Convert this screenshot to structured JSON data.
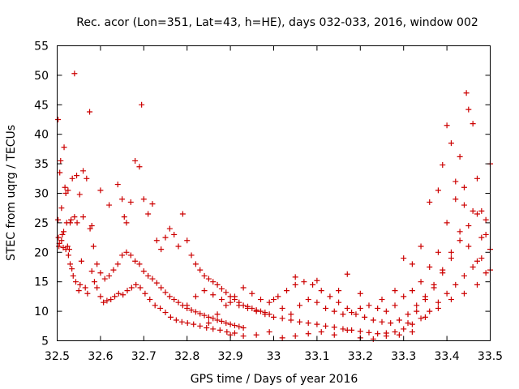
{
  "chart_data": {
    "type": "scatter",
    "title": "Rec. acor (Lon=351, Lat=43, h=HE), days 032-033, 2016, window 002",
    "xlabel": "GPS time / Days of year 2016",
    "ylabel": "STEC from uqrg / TECUs",
    "xlim": [
      32.5,
      33.5
    ],
    "ylim": [
      5,
      55
    ],
    "xticks": [
      "32.5",
      "32.6",
      "32.7",
      "32.8",
      "32.9",
      "33",
      "33.1",
      "33.2",
      "33.3",
      "33.4",
      "33.5"
    ],
    "yticks": [
      "5",
      "10",
      "15",
      "20",
      "25",
      "30",
      "35",
      "40",
      "45",
      "50",
      "55"
    ],
    "grid": false,
    "legend": "none",
    "marker": "plus",
    "color": "#cc0000",
    "series": [
      {
        "x": [
          32.502,
          32.502,
          32.503,
          32.504,
          32.506,
          32.508,
          32.51,
          32.512,
          32.514,
          32.516,
          32.518,
          32.52,
          32.522,
          32.524,
          32.526,
          32.528,
          32.53,
          32.532,
          32.534,
          32.537,
          32.54,
          32.543,
          32.546,
          32.55,
          32.553,
          32.556,
          32.56,
          32.565,
          32.57,
          32.575,
          32.58,
          32.586,
          32.592,
          32.6,
          32.607,
          32.615,
          32.624,
          32.633,
          32.642,
          32.652,
          32.662,
          32.672,
          32.682,
          32.692,
          32.703,
          32.714,
          32.726,
          32.738,
          32.75,
          32.762,
          32.775,
          32.788,
          32.801,
          32.815,
          32.83,
          32.845,
          32.86,
          32.876,
          32.892,
          32.91
        ],
        "y": [
          42.5,
          25.5,
          22.5,
          21.0,
          33.5,
          35.5,
          27.5,
          23.0,
          20.8,
          37.8,
          31.0,
          30.0,
          25.0,
          21.0,
          19.5,
          20.5,
          18.0,
          25.5,
          17.2,
          16.0,
          26.0,
          15.0,
          25.0,
          13.5,
          14.5,
          18.5,
          33.8,
          14.0,
          13.0,
          43.8,
          16.8,
          15.0,
          14.0,
          12.5,
          11.5,
          11.8,
          12.0,
          12.5,
          13.0,
          12.8,
          13.5,
          14.0,
          14.5,
          14.0,
          13.0,
          12.0,
          11.0,
          10.5,
          9.8,
          9.0,
          8.5,
          8.2,
          8.0,
          7.8,
          7.5,
          7.2,
          7.0,
          6.8,
          6.5,
          6.3
        ]
      },
      {
        "x": [
          32.505,
          32.51,
          32.515,
          32.52,
          32.525,
          32.53,
          32.535,
          32.545,
          32.552,
          32.56,
          32.568,
          32.576,
          32.584,
          32.592,
          32.6,
          32.61,
          32.62,
          32.63,
          32.64,
          32.65,
          32.66,
          32.67,
          32.68,
          32.69,
          32.7,
          32.71,
          32.72,
          32.73,
          32.74,
          32.75,
          32.76,
          32.77,
          32.78,
          32.79,
          32.8,
          32.81,
          32.82,
          32.83,
          32.84,
          32.85,
          32.86,
          32.87,
          32.88,
          32.89,
          32.9,
          32.91,
          32.92,
          32.93
        ],
        "y": [
          21.5,
          22.0,
          23.5,
          20.5,
          30.5,
          25.0,
          32.5,
          33.0,
          29.8,
          26.0,
          32.5,
          24.0,
          21.0,
          18.0,
          16.5,
          15.5,
          16.0,
          17.0,
          18.0,
          19.5,
          20.0,
          19.5,
          18.5,
          18.0,
          16.8,
          16.0,
          15.5,
          14.8,
          14.0,
          13.2,
          12.5,
          12.0,
          11.5,
          11.0,
          10.5,
          10.2,
          9.9,
          9.6,
          9.3,
          9.0,
          8.8,
          8.5,
          8.3,
          8.0,
          7.8,
          7.6,
          7.4,
          7.2
        ]
      },
      {
        "x": [
          32.54,
          32.58,
          32.6,
          32.62,
          32.64,
          32.65,
          32.655,
          32.66,
          32.67,
          32.68,
          32.69,
          32.695,
          32.7,
          32.71,
          32.72,
          32.73,
          32.74,
          32.75,
          32.76,
          32.77,
          32.78,
          32.79,
          32.8,
          32.81,
          32.82,
          32.83,
          32.84,
          32.85,
          32.86,
          32.87,
          32.88,
          32.89,
          32.9,
          32.91,
          32.92,
          32.93,
          32.94,
          32.95,
          32.96,
          32.97,
          32.98,
          32.99
        ],
        "y": [
          50.3,
          24.5,
          30.5,
          28.0,
          31.5,
          29.0,
          26.0,
          25.0,
          28.5,
          35.5,
          34.5,
          45.0,
          29.0,
          26.5,
          28.2,
          22.0,
          20.5,
          22.5,
          24.0,
          23.0,
          21.0,
          26.5,
          22.0,
          19.5,
          18.0,
          17.0,
          16.0,
          15.5,
          15.0,
          14.5,
          13.8,
          13.2,
          12.5,
          12.0,
          11.5,
          11.0,
          10.8,
          10.5,
          10.2,
          10.0,
          9.8,
          9.5
        ]
      },
      {
        "x": [
          32.8,
          32.82,
          32.84,
          32.86,
          32.88,
          32.9,
          32.92,
          32.94,
          32.96,
          32.98,
          33.0,
          33.02,
          33.04,
          33.06,
          33.08,
          33.1,
          33.12,
          33.14,
          33.16,
          33.18,
          33.2,
          33.22,
          33.24,
          33.26,
          33.28,
          33.3,
          33.32,
          33.34,
          33.36,
          33.38,
          33.4,
          33.42,
          33.44,
          33.46,
          33.48,
          33.5
        ],
        "y": [
          11.0,
          12.5,
          13.5,
          12.8,
          12.0,
          11.5,
          11.0,
          10.5,
          10.0,
          9.5,
          9.0,
          8.8,
          8.5,
          8.2,
          8.0,
          7.8,
          7.5,
          7.3,
          7.0,
          6.8,
          6.6,
          6.4,
          6.2,
          6.3,
          6.5,
          7.0,
          7.8,
          8.8,
          10.0,
          11.5,
          13.0,
          14.5,
          16.0,
          17.5,
          19.0,
          20.5
        ]
      },
      {
        "x": [
          32.85,
          32.87,
          32.89,
          32.91,
          32.93,
          32.95,
          32.97,
          32.99,
          33.01,
          33.03,
          33.05,
          33.07,
          33.09,
          33.11,
          33.13,
          33.15,
          33.17,
          33.19,
          33.21,
          33.23,
          33.25,
          33.27,
          33.29,
          33.31,
          33.33,
          33.35,
          33.37,
          33.39,
          33.41,
          33.43,
          33.45,
          33.47,
          33.49
        ],
        "y": [
          8.0,
          9.5,
          11.0,
          12.5,
          14.0,
          13.0,
          12.0,
          11.5,
          12.5,
          13.5,
          14.5,
          15.0,
          14.5,
          13.5,
          12.5,
          11.5,
          10.5,
          9.5,
          9.0,
          8.5,
          8.2,
          8.0,
          8.5,
          9.5,
          11.0,
          12.5,
          14.0,
          16.5,
          19.0,
          22.0,
          24.5,
          26.5,
          23.0
        ]
      },
      {
        "x": [
          32.9,
          32.93,
          32.96,
          32.99,
          33.02,
          33.05,
          33.08,
          33.11,
          33.14,
          33.17,
          33.2,
          33.23,
          33.26,
          33.29,
          33.32,
          33.35,
          33.38,
          33.41,
          33.44,
          33.47,
          33.5
        ],
        "y": [
          6.0,
          5.8,
          6.0,
          6.5,
          5.5,
          5.8,
          6.2,
          6.5,
          6.0,
          6.8,
          5.5,
          5.3,
          5.8,
          6.0,
          6.5,
          9.0,
          10.5,
          12.0,
          13.0,
          14.5,
          17.0
        ]
      },
      {
        "x": [
          33.0,
          33.02,
          33.04,
          33.06,
          33.08,
          33.1,
          33.12,
          33.14,
          33.16,
          33.18,
          33.2,
          33.22,
          33.24,
          33.26,
          33.28,
          33.3,
          33.32,
          33.34,
          33.36,
          33.38,
          33.4,
          33.42,
          33.44,
          33.46,
          33.48
        ],
        "y": [
          12.0,
          10.5,
          9.5,
          11.0,
          12.0,
          11.5,
          10.5,
          10.0,
          9.5,
          9.8,
          10.5,
          11.0,
          10.5,
          10.0,
          11.0,
          12.5,
          13.5,
          15.0,
          17.5,
          20.0,
          25.0,
          29.0,
          31.0,
          27.0,
          22.5
        ]
      },
      {
        "x": [
          33.05,
          33.1,
          33.15,
          33.17,
          33.2,
          33.25,
          33.28,
          33.3,
          33.32,
          33.34,
          33.36,
          33.38,
          33.39,
          33.4,
          33.41,
          33.42,
          33.43,
          33.44,
          33.445,
          33.45,
          33.46,
          33.47,
          33.48,
          33.49,
          33.5
        ],
        "y": [
          15.8,
          15.2,
          13.5,
          16.3,
          13.0,
          12.0,
          13.5,
          19.0,
          18.0,
          21.0,
          28.5,
          30.5,
          34.8,
          41.5,
          38.5,
          32.0,
          36.2,
          28.0,
          47.0,
          44.2,
          41.8,
          32.5,
          27.0,
          25.5,
          35.0
        ]
      },
      {
        "x": [
          33.31,
          33.33,
          33.35,
          33.37,
          33.39,
          33.41,
          33.43,
          33.45,
          33.47,
          33.49
        ],
        "y": [
          8.0,
          10.0,
          12.0,
          14.5,
          17.0,
          20.0,
          23.5,
          21.0,
          18.5,
          16.5
        ]
      }
    ]
  }
}
